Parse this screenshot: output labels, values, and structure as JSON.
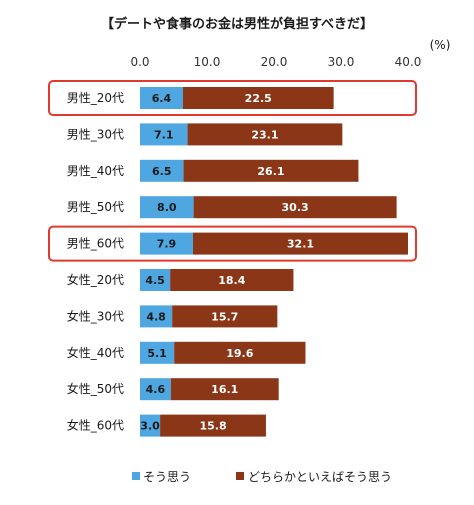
{
  "chart_data": {
    "type": "bar",
    "orientation": "horizontal",
    "stacked": true,
    "title": "【デートや食事のお金は男性が負担すべきだ】",
    "unit_label": "(%)",
    "xlim": [
      0,
      40
    ],
    "x_ticks": [
      "0.0",
      "10.0",
      "20.0",
      "30.0",
      "40.0"
    ],
    "categories": [
      "男性_20代",
      "男性_30代",
      "男性_40代",
      "男性_50代",
      "男性_60代",
      "女性_20代",
      "女性_30代",
      "女性_40代",
      "女性_50代",
      "女性_60代"
    ],
    "series": [
      {
        "name": "そう思う",
        "color": "#4ea7e0",
        "values": [
          6.4,
          7.1,
          6.5,
          8.0,
          7.9,
          4.5,
          4.8,
          5.1,
          4.6,
          3.0
        ],
        "labels": [
          "6.4",
          "7.1",
          "6.5",
          "8.0",
          "7.9",
          "4.5",
          "4.8",
          "5.1",
          "4.6",
          "3.0"
        ]
      },
      {
        "name": "どちらかといえばそう思う",
        "color": "#8b3717",
        "values": [
          22.5,
          23.1,
          26.1,
          30.3,
          32.1,
          18.4,
          15.7,
          19.6,
          16.1,
          15.8
        ],
        "labels": [
          "22.5",
          "23.1",
          "26.1",
          "30.3",
          "32.1",
          "18.4",
          "15.7",
          "19.6",
          "16.1",
          "15.8"
        ]
      }
    ],
    "highlighted_categories": [
      "男性_20代",
      "男性_60代"
    ],
    "highlight_color": "#e03a2f",
    "legend_position": "bottom",
    "grid": false
  }
}
